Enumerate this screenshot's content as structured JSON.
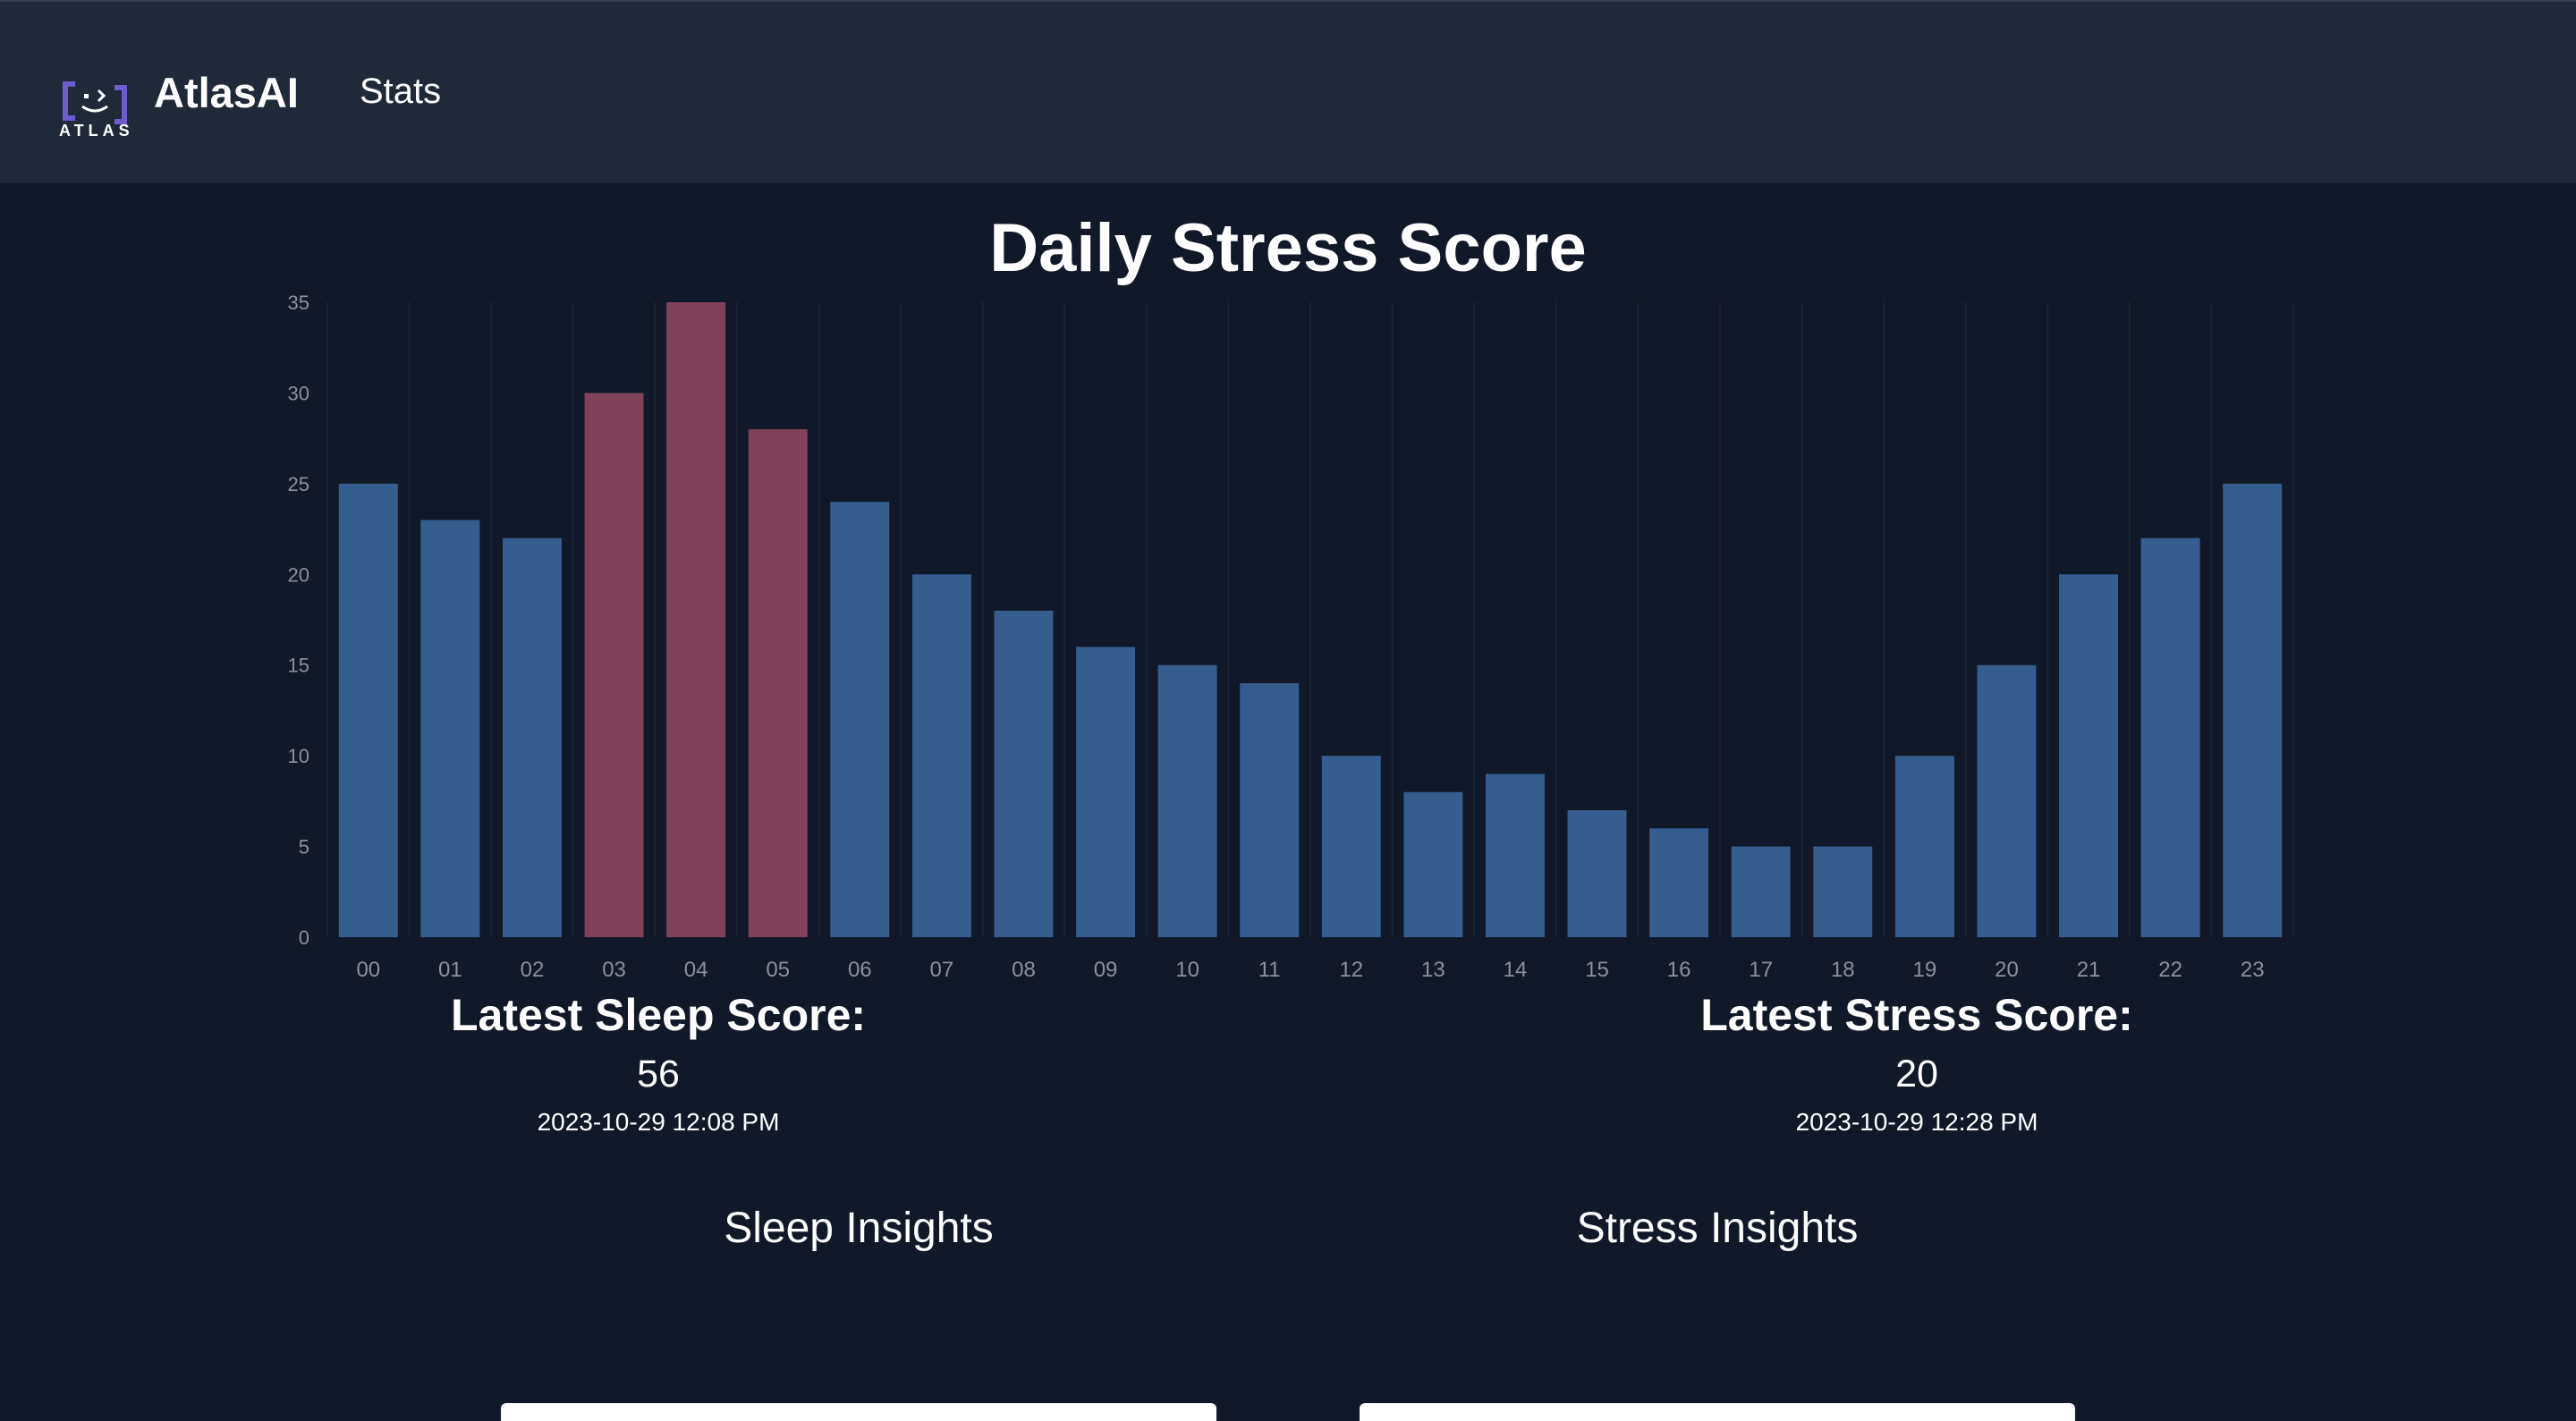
{
  "nav": {
    "logo_text": "ATLAS",
    "brand": "AtlasAI",
    "link": "Stats"
  },
  "colors": {
    "background": "#111827",
    "navbar": "#1f2937",
    "bar_normal": "#355d8d",
    "bar_highlight": "#804258",
    "logo_accent": "#6d5bd0"
  },
  "chart_data": {
    "type": "bar",
    "title": "Daily Stress Score",
    "categories": [
      "00",
      "01",
      "02",
      "03",
      "04",
      "05",
      "06",
      "07",
      "08",
      "09",
      "10",
      "11",
      "12",
      "13",
      "14",
      "15",
      "16",
      "17",
      "18",
      "19",
      "20",
      "21",
      "22",
      "23"
    ],
    "values": [
      25,
      23,
      22,
      30,
      35,
      28,
      24,
      20,
      18,
      16,
      15,
      14,
      10,
      8,
      9,
      7,
      6,
      5,
      5,
      10,
      15,
      20,
      22,
      25
    ],
    "highlighted": [
      "03",
      "04",
      "05"
    ],
    "yticks": [
      0,
      5,
      10,
      15,
      20,
      25,
      30,
      35
    ],
    "ylim": [
      0,
      35
    ],
    "xlabel": "",
    "ylabel": "",
    "grid": "vertical"
  },
  "sleep_score": {
    "heading": "Latest Sleep Score:",
    "value": "56",
    "timestamp": "2023-10-29 12:08 PM"
  },
  "stress_score": {
    "heading": "Latest Stress Score:",
    "value": "20",
    "timestamp": "2023-10-29 12:28 PM"
  },
  "insights": {
    "sleep": "Sleep Insights",
    "stress": "Stress Insights"
  }
}
